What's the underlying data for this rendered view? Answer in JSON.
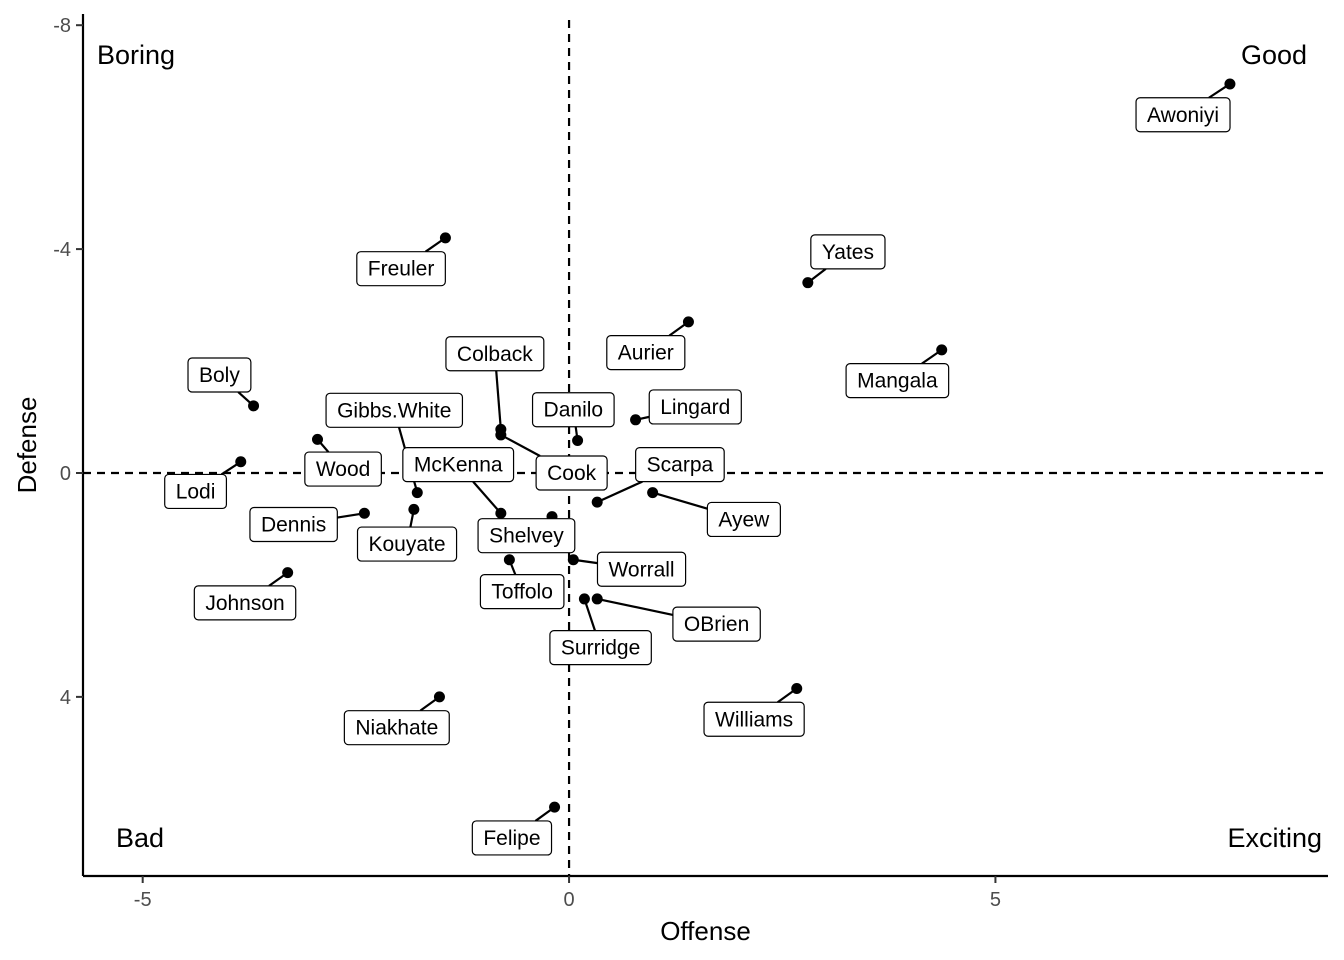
{
  "chart_data": {
    "type": "scatter",
    "xlabel": "Offense",
    "ylabel": "Defense",
    "xlim": [
      -5.7,
      8.9
    ],
    "ylim": [
      -8.2,
      7.2
    ],
    "y_reversed": true,
    "x_ticks": [
      -5,
      0,
      5
    ],
    "x_tick_labels": [
      "-5",
      "0",
      "5"
    ],
    "y_ticks": [
      -8,
      -4,
      0,
      4
    ],
    "y_tick_labels": [
      "-8",
      "-4",
      "0",
      "4"
    ],
    "reference_lines": {
      "x": 0,
      "y": 0,
      "style": "dashed"
    },
    "grid": false,
    "quadrant_labels": {
      "top_left": "Boring",
      "top_right": "Good",
      "bottom_left": "Bad",
      "bottom_right": "Exciting"
    },
    "points": [
      {
        "label": "Awoniyi",
        "x": 7.75,
        "y": -6.95,
        "lx": 7.2,
        "ly": -6.4
      },
      {
        "label": "Yates",
        "x": 2.8,
        "y": -3.4,
        "lx": 3.27,
        "ly": -3.95
      },
      {
        "label": "Mangala",
        "x": 4.37,
        "y": -2.2,
        "lx": 3.85,
        "ly": -1.65
      },
      {
        "label": "Aurier",
        "x": 1.4,
        "y": -2.7,
        "lx": 0.9,
        "ly": -2.15
      },
      {
        "label": "Freuler",
        "x": -1.45,
        "y": -4.2,
        "lx": -1.97,
        "ly": -3.65
      },
      {
        "label": "Boly",
        "x": -3.7,
        "y": -1.2,
        "lx": -4.1,
        "ly": -1.75
      },
      {
        "label": "Lodi",
        "x": -3.85,
        "y": -0.2,
        "lx": -4.38,
        "ly": 0.33
      },
      {
        "label": "Wood",
        "x": -2.95,
        "y": -0.6,
        "lx": -2.65,
        "ly": -0.07
      },
      {
        "label": "Gibbs.White",
        "x": -1.78,
        "y": 0.35,
        "lx": -2.05,
        "ly": -1.12
      },
      {
        "label": "Colback",
        "x": -0.8,
        "y": -0.78,
        "lx": -0.87,
        "ly": -2.13
      },
      {
        "label": "Danilo",
        "x": 0.1,
        "y": -0.58,
        "lx": 0.05,
        "ly": -1.13
      },
      {
        "label": "Lingard",
        "x": 0.78,
        "y": -0.95,
        "lx": 1.48,
        "ly": -1.18
      },
      {
        "label": "McKenna",
        "x": -0.8,
        "y": 0.72,
        "lx": -1.3,
        "ly": -0.15
      },
      {
        "label": "Cook",
        "x": -0.8,
        "y": -0.68,
        "lx": 0.03,
        "ly": 0.0
      },
      {
        "label": "Scarpa",
        "x": 0.33,
        "y": 0.52,
        "lx": 1.3,
        "ly": -0.15
      },
      {
        "label": "Ayew",
        "x": 0.98,
        "y": 0.35,
        "lx": 2.05,
        "ly": 0.83
      },
      {
        "label": "Dennis",
        "x": -2.4,
        "y": 0.72,
        "lx": -3.23,
        "ly": 0.92
      },
      {
        "label": "Kouyate",
        "x": -1.82,
        "y": 0.65,
        "lx": -1.9,
        "ly": 1.27
      },
      {
        "label": "Shelvey",
        "x": -0.2,
        "y": 0.78,
        "lx": -0.5,
        "ly": 1.12
      },
      {
        "label": "Toffolo",
        "x": -0.7,
        "y": 1.55,
        "lx": -0.55,
        "ly": 2.12
      },
      {
        "label": "Worrall",
        "x": 0.05,
        "y": 1.55,
        "lx": 0.85,
        "ly": 1.72
      },
      {
        "label": "OBrien",
        "x": 0.33,
        "y": 2.25,
        "lx": 1.73,
        "ly": 2.7
      },
      {
        "label": "Surridge",
        "x": 0.18,
        "y": 2.25,
        "lx": 0.37,
        "ly": 3.12
      },
      {
        "label": "Johnson",
        "x": -3.3,
        "y": 1.78,
        "lx": -3.8,
        "ly": 2.32
      },
      {
        "label": "Niakhate",
        "x": -1.52,
        "y": 4.0,
        "lx": -2.02,
        "ly": 4.55
      },
      {
        "label": "Williams",
        "x": 2.67,
        "y": 3.85,
        "lx": 2.17,
        "ly": 4.4
      },
      {
        "label": "Felipe",
        "x": -0.17,
        "y": 5.97,
        "lx": -0.67,
        "ly": 6.52
      }
    ]
  }
}
